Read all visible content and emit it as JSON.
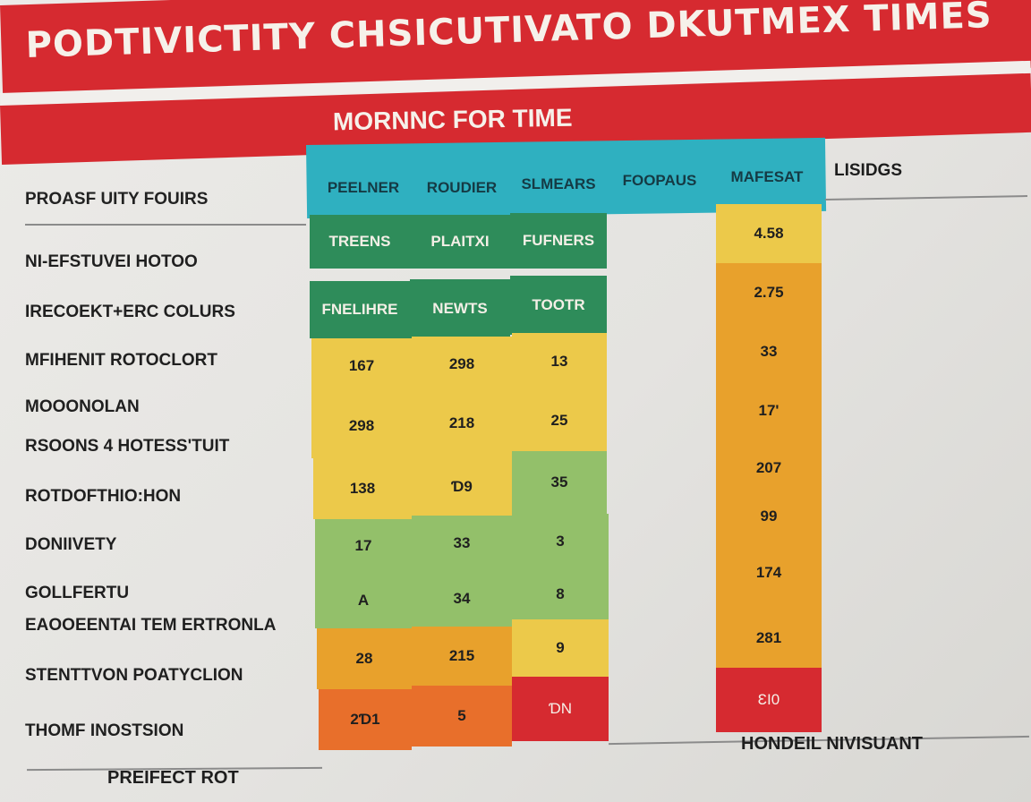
{
  "title": "PODTIVICTITY CHSICUTIVATO DKUTMEX TIMES",
  "subtitle": "MORNNC FOR TIME",
  "left_header": "PROASF UITY FOUIRS",
  "columns": [
    "PEELNER",
    "ROUDIER",
    "SLMEARS",
    "FOOPAUS",
    "MAFESAT"
  ],
  "right_header": "LISIDGS",
  "rows": [
    "NI-EFSTUVEI HOTOO",
    "IRECOEKT+ERC COLURS",
    "MFIHENIT ROTOCLORT",
    "MOOONOLAN",
    "RSOONS 4 HOTESS'TUIT",
    "ROTDOFTHIO:HON",
    "DONIIVETY",
    "GOLLFERTU",
    "EAOOEENTAI TEM ERTRONLA",
    "STENTTVON POATYCLION",
    "THOMF INOSTSION"
  ],
  "green_headers": [
    [
      "TREENS",
      "PLAITXI",
      "FUFNERS"
    ],
    [
      "FNELIHRE",
      "NEWTS",
      "TOOTR"
    ]
  ],
  "grid": [
    [
      "167",
      "298",
      "13"
    ],
    [
      "298",
      "218",
      "25"
    ],
    [
      "138",
      "Ɗ9",
      "35"
    ],
    [
      "17",
      "33",
      "3"
    ],
    [
      "A",
      "34",
      "8"
    ],
    [
      "28",
      "215",
      "9"
    ],
    [
      "2Ɗ1",
      "5",
      "ƊN"
    ]
  ],
  "right_column": [
    "4.58",
    "2.75",
    "33",
    "17'",
    "207",
    "99",
    "174",
    "281",
    "ƐI0"
  ],
  "footer_left": "PREIFECT ROT",
  "footer_right": "HONDEIL NIVISUANT",
  "colors": {
    "red": "#d62a30",
    "teal": "#2fb0c0",
    "dark_green": "#2e8c5a",
    "yellow": "#ecc94a",
    "light_green": "#93c06a",
    "orange": "#e8a12c",
    "deep_orange": "#e86f2b"
  }
}
